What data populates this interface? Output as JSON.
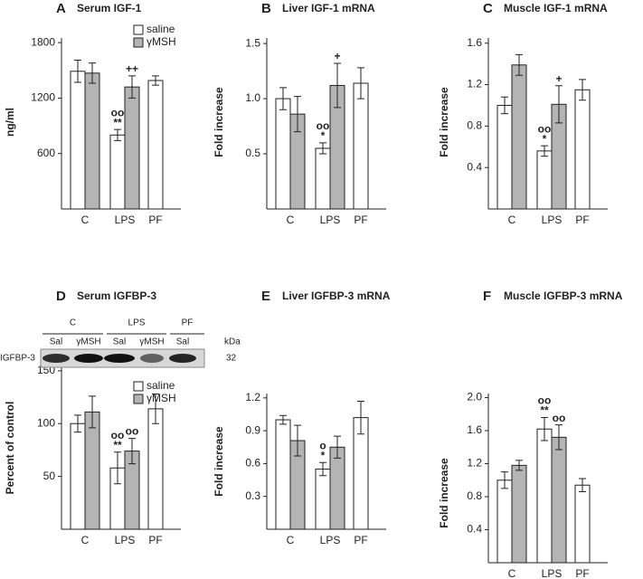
{
  "chart_data": [
    {
      "type": "bar",
      "label": "A",
      "title": "Serum IGF-1",
      "ylabel": "ng/ml",
      "categories": [
        "C",
        "LPS",
        "PF"
      ],
      "series": [
        {
          "name": "saline",
          "color": "#ffffff",
          "values": [
            1490,
            800,
            1390
          ],
          "errors": [
            120,
            60,
            50
          ],
          "annotations": [
            null,
            [
              "oo",
              "**"
            ],
            null
          ]
        },
        {
          "name": "γMSH",
          "color": "#b4b4b4",
          "values": [
            1470,
            1320,
            null
          ],
          "errors": [
            110,
            120,
            null
          ],
          "annotations": [
            null,
            [
              "++"
            ],
            null
          ]
        }
      ],
      "ylim": [
        0,
        1850
      ],
      "yticks": [
        600,
        1200,
        1800
      ],
      "legend": true
    },
    {
      "type": "bar",
      "label": "B",
      "title": "Liver IGF-1 mRNA",
      "ylabel": "Fold increase",
      "categories": [
        "C",
        "LPS",
        "PF"
      ],
      "series": [
        {
          "name": "saline",
          "color": "#ffffff",
          "values": [
            1.0,
            0.55,
            1.14
          ],
          "errors": [
            0.1,
            0.05,
            0.14
          ],
          "annotations": [
            null,
            [
              "oo",
              "*"
            ],
            null
          ]
        },
        {
          "name": "γMSH",
          "color": "#b4b4b4",
          "values": [
            0.86,
            1.12,
            null
          ],
          "errors": [
            0.16,
            0.2,
            null
          ],
          "annotations": [
            null,
            [
              "+"
            ],
            null
          ]
        }
      ],
      "ylim": [
        0,
        1.55
      ],
      "yticks": [
        0.5,
        {
          "value": 1,
          "label": "1.0"
        },
        1.5
      ],
      "legend": false
    },
    {
      "type": "bar",
      "label": "C",
      "title": "Muscle IGF-1 mRNA",
      "ylabel": "Fold increase",
      "categories": [
        "C",
        "LPS",
        "PF"
      ],
      "series": [
        {
          "name": "saline",
          "color": "#ffffff",
          "values": [
            1.0,
            0.56,
            1.15
          ],
          "errors": [
            0.08,
            0.05,
            0.1
          ],
          "annotations": [
            null,
            [
              "oo",
              "*"
            ],
            null
          ]
        },
        {
          "name": "γMSH",
          "color": "#b4b4b4",
          "values": [
            1.39,
            1.01,
            null
          ],
          "errors": [
            0.1,
            0.18,
            null
          ],
          "annotations": [
            null,
            [
              "+"
            ],
            null
          ]
        }
      ],
      "ylim": [
        0,
        1.65
      ],
      "yticks": [
        0.4,
        0.8,
        1.2,
        1.6
      ],
      "legend": false
    },
    {
      "type": "bar",
      "label": "D",
      "title": "Serum IGFBP-3",
      "ylabel": "Percent of control",
      "categories": [
        "C",
        "LPS",
        "PF"
      ],
      "series": [
        {
          "name": "saline",
          "color": "#ffffff",
          "values": [
            100,
            58,
            114
          ],
          "errors": [
            8,
            15,
            14
          ],
          "annotations": [
            null,
            [
              "oo",
              "**"
            ],
            null
          ]
        },
        {
          "name": "γMSH",
          "color": "#b4b4b4",
          "values": [
            111,
            74,
            null
          ],
          "errors": [
            15,
            12,
            null
          ],
          "annotations": [
            null,
            [
              "oo"
            ],
            null
          ]
        }
      ],
      "ylim": [
        0,
        155
      ],
      "yticks": [
        50,
        100,
        150
      ],
      "legend": true,
      "blot": {
        "groups": [
          "C",
          "LPS",
          "PF"
        ],
        "lanes": [
          "Sal",
          "γMSH",
          "Sal",
          "γMSH",
          "Sal"
        ],
        "unit": "kDa",
        "band": "IGFBP-3",
        "size": "32"
      }
    },
    {
      "type": "bar",
      "label": "E",
      "title": "Liver IGFBP-3 mRNA",
      "ylabel": "Fold increase",
      "categories": [
        "C",
        "LPS",
        "PF"
      ],
      "series": [
        {
          "name": "saline",
          "color": "#ffffff",
          "values": [
            1.0,
            0.55,
            1.02
          ],
          "errors": [
            0.04,
            0.06,
            0.15
          ],
          "annotations": [
            null,
            [
              "o",
              "*"
            ],
            null
          ]
        },
        {
          "name": "γMSH",
          "color": "#b4b4b4",
          "values": [
            0.81,
            0.75,
            null
          ],
          "errors": [
            0.14,
            0.1,
            null
          ],
          "annotations": [
            null,
            null,
            null
          ]
        }
      ],
      "ylim": [
        0,
        1.24
      ],
      "yticks": [
        0.3,
        0.6,
        0.9,
        1.2
      ],
      "legend": false
    },
    {
      "type": "bar",
      "label": "F",
      "title": "Muscle IGFBP-3 mRNA",
      "ylabel": "Fold increase",
      "categories": [
        "C",
        "LPS",
        "PF"
      ],
      "series": [
        {
          "name": "saline",
          "color": "#ffffff",
          "values": [
            1.0,
            1.62,
            0.94
          ],
          "errors": [
            0.1,
            0.14,
            0.08
          ],
          "annotations": [
            null,
            [
              "oo",
              "**"
            ],
            null
          ]
        },
        {
          "name": "γMSH",
          "color": "#b4b4b4",
          "values": [
            1.18,
            1.52,
            null
          ],
          "errors": [
            0.06,
            0.15,
            null
          ],
          "annotations": [
            null,
            [
              "oo"
            ],
            null
          ]
        }
      ],
      "ylim": [
        0,
        2.05
      ],
      "yticks": [
        0.4,
        0.8,
        1.2,
        1.6,
        {
          "value": 2,
          "label": "2.0"
        }
      ],
      "legend": false
    }
  ]
}
